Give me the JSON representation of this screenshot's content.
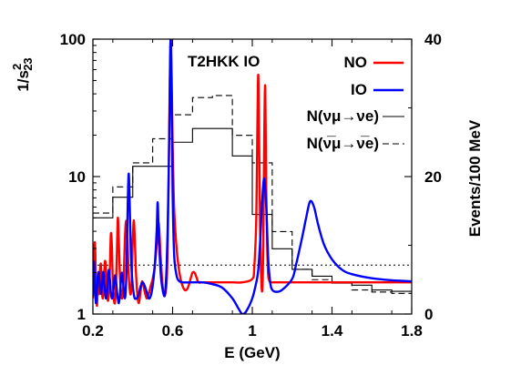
{
  "chart_data": {
    "type": "line",
    "title": "T2HKK IO",
    "xlabel": "E (GeV)",
    "ylabel_left": "1/s²₂₃",
    "ylabel_right": "Events/100 MeV",
    "x_ticks": [
      "0.2",
      "0.6",
      "1",
      "1.4",
      "1.8"
    ],
    "x_tick_values": [
      0.2,
      0.6,
      1.0,
      1.4,
      1.8
    ],
    "y_left_ticks": [
      "1",
      "10",
      "100"
    ],
    "y_left_tick_values": [
      1,
      10,
      100
    ],
    "y_right_ticks": [
      "0",
      "20",
      "40"
    ],
    "y_right_tick_values": [
      0,
      20,
      40
    ],
    "xlim": [
      0.2,
      1.8
    ],
    "ylim_left": [
      1,
      100
    ],
    "ylim_left_scale": "log",
    "ylim_right": [
      0,
      40
    ],
    "legend_position": "top-right",
    "reference_line": {
      "y_left": 2.27,
      "style": "dotted"
    },
    "series": [
      {
        "name": "NO",
        "color": "#ff0000",
        "style": "solid",
        "axis": "left",
        "x": [
          0.2,
          0.205,
          0.21,
          0.215,
          0.22,
          0.225,
          0.23,
          0.235,
          0.24,
          0.245,
          0.25,
          0.255,
          0.26,
          0.265,
          0.27,
          0.275,
          0.28,
          0.285,
          0.29,
          0.295,
          0.3,
          0.305,
          0.31,
          0.315,
          0.32,
          0.325,
          0.33,
          0.335,
          0.34,
          0.345,
          0.35,
          0.355,
          0.36,
          0.365,
          0.37,
          0.375,
          0.38,
          0.385,
          0.39,
          0.395,
          0.4,
          0.405,
          0.41,
          0.415,
          0.42,
          0.425,
          0.43,
          0.435,
          0.44,
          0.445,
          0.45,
          0.46,
          0.47,
          0.48,
          0.49,
          0.5,
          0.51,
          0.52,
          0.53,
          0.54,
          0.55,
          0.56,
          0.57,
          0.575,
          0.58,
          0.585,
          0.59,
          0.595,
          0.6,
          0.605,
          0.61,
          0.62,
          0.63,
          0.64,
          0.65,
          0.66,
          0.67,
          0.68,
          0.69,
          0.7,
          0.71,
          0.72,
          0.73,
          0.75,
          0.8,
          0.85,
          0.9,
          0.95,
          1.0,
          1.01,
          1.02,
          1.025,
          1.03,
          1.035,
          1.04,
          1.045,
          1.05,
          1.055,
          1.06,
          1.065,
          1.07,
          1.075,
          1.08,
          1.09,
          1.1,
          1.2,
          1.3,
          1.4,
          1.5,
          1.6,
          1.7,
          1.8
        ],
        "y": [
          1.3,
          2.5,
          3.3,
          1.8,
          1.15,
          1.6,
          1.4,
          2.0,
          2.3,
          1.5,
          1.3,
          1.7,
          2.4,
          2.2,
          1.5,
          1.25,
          1.4,
          2.1,
          3.8,
          3.2,
          1.7,
          1.3,
          1.2,
          1.5,
          2.6,
          5.0,
          3.4,
          2.0,
          1.5,
          1.3,
          1.4,
          1.9,
          3.3,
          4.6,
          4.5,
          3.0,
          1.9,
          1.5,
          1.4,
          1.8,
          3.4,
          4.8,
          3.6,
          2.2,
          1.6,
          1.3,
          1.2,
          1.3,
          1.5,
          1.7,
          1.7,
          1.45,
          1.3,
          1.4,
          1.6,
          1.8,
          2.2,
          3.1,
          4.6,
          2.6,
          1.6,
          1.35,
          1.7,
          3.0,
          9.0,
          40.0,
          100.0,
          55.0,
          18.0,
          8.0,
          5.0,
          3.0,
          2.2,
          1.8,
          1.6,
          1.5,
          1.5,
          1.6,
          1.8,
          2.0,
          2.0,
          1.85,
          1.7,
          1.7,
          1.7,
          1.7,
          1.7,
          1.7,
          1.8,
          2.2,
          5.0,
          20.0,
          55.0,
          15.0,
          3.5,
          1.8,
          1.5,
          3.0,
          20.0,
          45.0,
          8.0,
          3.0,
          1.9,
          1.7,
          1.7,
          1.7,
          1.7,
          1.7,
          1.7,
          1.7,
          1.7,
          1.7
        ]
      },
      {
        "name": "IO",
        "color": "#0000ff",
        "style": "solid",
        "axis": "left",
        "x": [
          0.2,
          0.205,
          0.21,
          0.215,
          0.22,
          0.225,
          0.23,
          0.235,
          0.24,
          0.245,
          0.25,
          0.255,
          0.26,
          0.265,
          0.27,
          0.275,
          0.28,
          0.285,
          0.29,
          0.295,
          0.3,
          0.305,
          0.31,
          0.315,
          0.32,
          0.325,
          0.33,
          0.335,
          0.34,
          0.345,
          0.35,
          0.355,
          0.36,
          0.365,
          0.37,
          0.375,
          0.38,
          0.385,
          0.39,
          0.395,
          0.4,
          0.405,
          0.41,
          0.42,
          0.43,
          0.44,
          0.45,
          0.46,
          0.47,
          0.48,
          0.49,
          0.5,
          0.51,
          0.52,
          0.525,
          0.53,
          0.54,
          0.55,
          0.56,
          0.565,
          0.57,
          0.575,
          0.58,
          0.585,
          0.59,
          0.595,
          0.6,
          0.605,
          0.61,
          0.62,
          0.63,
          0.65,
          0.7,
          0.75,
          0.8,
          0.85,
          0.9,
          0.93,
          0.95,
          0.97,
          1.0,
          1.02,
          1.03,
          1.04,
          1.05,
          1.06,
          1.07,
          1.08,
          1.09,
          1.1,
          1.12,
          1.15,
          1.2,
          1.22,
          1.25,
          1.27,
          1.29,
          1.31,
          1.33,
          1.36,
          1.4,
          1.45,
          1.5,
          1.6,
          1.7,
          1.8
        ],
        "y": [
          1.35,
          2.4,
          1.6,
          1.2,
          1.5,
          1.9,
          2.0,
          1.6,
          1.4,
          1.6,
          2.0,
          1.9,
          1.5,
          1.3,
          1.4,
          1.8,
          2.1,
          1.8,
          1.45,
          1.3,
          1.35,
          1.6,
          1.9,
          1.8,
          1.5,
          1.3,
          1.2,
          1.35,
          1.7,
          2.0,
          1.8,
          1.5,
          1.3,
          1.5,
          2.6,
          6.5,
          10.5,
          6.0,
          3.0,
          2.0,
          1.6,
          1.4,
          1.3,
          1.3,
          1.4,
          1.6,
          1.7,
          1.6,
          1.45,
          1.3,
          1.35,
          1.6,
          2.2,
          4.0,
          6.5,
          4.0,
          2.0,
          1.5,
          1.35,
          1.6,
          2.2,
          4.0,
          10.0,
          30.0,
          100.0,
          40.0,
          8.0,
          3.5,
          2.4,
          1.9,
          1.75,
          1.7,
          1.7,
          1.7,
          1.65,
          1.55,
          1.3,
          1.1,
          1.0,
          1.05,
          1.3,
          1.7,
          2.1,
          3.5,
          6.8,
          9.7,
          6.0,
          2.5,
          1.7,
          1.5,
          1.45,
          1.5,
          1.8,
          2.3,
          3.6,
          5.0,
          6.6,
          6.0,
          4.5,
          3.2,
          2.5,
          2.1,
          1.95,
          1.82,
          1.76,
          1.73
        ]
      },
      {
        "name": "N(νμ→νe)",
        "color": "#000000",
        "style": "histogram-solid",
        "axis": "right",
        "bin_edges": [
          0.2,
          0.3,
          0.4,
          0.5,
          0.6,
          0.7,
          0.8,
          0.9,
          1.0,
          1.1,
          1.2,
          1.3,
          1.4,
          1.5,
          1.6,
          1.7,
          1.8
        ],
        "values": [
          14,
          17,
          21.5,
          21.5,
          25,
          27,
          27,
          23,
          14.5,
          9.5,
          6.5,
          5.5,
          4.5,
          4.2,
          3.5,
          3.3
        ]
      },
      {
        "name": "N(ν̅μ→ν̅e)",
        "color": "#000000",
        "style": "histogram-dashed",
        "axis": "right",
        "bin_edges": [
          0.2,
          0.3,
          0.4,
          0.5,
          0.6,
          0.7,
          0.8,
          0.9,
          1.0,
          1.1,
          1.2,
          1.3,
          1.4,
          1.5,
          1.6,
          1.7,
          1.8
        ],
        "values": [
          14.7,
          18.5,
          22,
          25.5,
          29,
          31.5,
          31.8,
          26,
          22,
          12,
          6.5,
          5,
          4.6,
          3.5,
          3.2,
          3
        ]
      }
    ]
  },
  "legend": {
    "no_label": "NO",
    "io_label": "IO",
    "nu_label": "N(νμ→νe)",
    "nubar_label": "N(ν̅μ→ν̅e)"
  }
}
